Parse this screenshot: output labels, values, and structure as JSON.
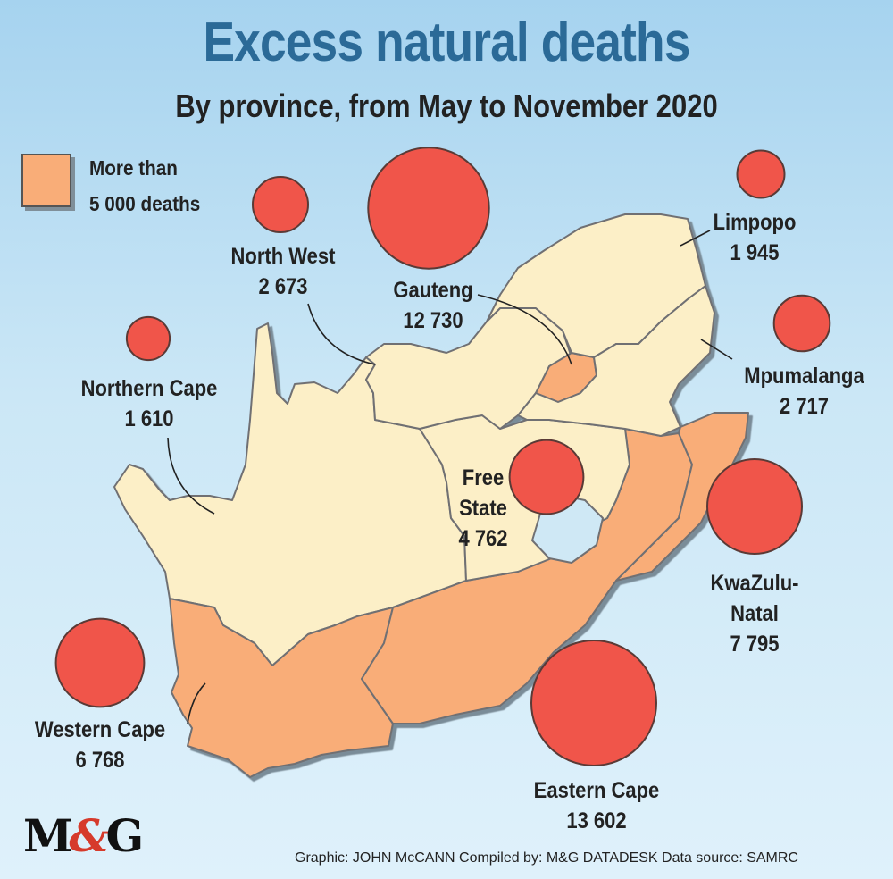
{
  "title": "Excess natural deaths",
  "subtitle": "By province, from May to November 2020",
  "legend": {
    "line1": "More than",
    "line2": "5 000 deaths",
    "swatch_color": "#f9ad78"
  },
  "colors": {
    "ocean": "#cbe7f6",
    "province_default": "#fcefc7",
    "province_highlight": "#f9ad78",
    "bubble": "#f0554a",
    "title": "#2b6a97"
  },
  "provinces": [
    {
      "name": "Gauteng",
      "value_label": "12 730",
      "value": 12730,
      "over_5000": true
    },
    {
      "name": "North West",
      "value_label": "2 673",
      "value": 2673,
      "over_5000": false
    },
    {
      "name": "Limpopo",
      "value_label": "1 945",
      "value": 1945,
      "over_5000": false
    },
    {
      "name": "Mpumalanga",
      "value_label": "2 717",
      "value": 2717,
      "over_5000": false
    },
    {
      "name": "Northern Cape",
      "value_label": "1 610",
      "value": 1610,
      "over_5000": false
    },
    {
      "name": "Free State",
      "value_label": "4 762",
      "value": 4762,
      "over_5000": false
    },
    {
      "name": "KwaZulu-Natal",
      "value_label": "7 795",
      "value": 7795,
      "over_5000": true
    },
    {
      "name": "Western Cape",
      "value_label": "6 768",
      "value": 6768,
      "over_5000": true
    },
    {
      "name": "Eastern Cape",
      "value_label": "13 602",
      "value": 13602,
      "over_5000": true
    }
  ],
  "labels": {
    "gauteng": {
      "name": "Gauteng",
      "value": "12 730"
    },
    "north_west": {
      "name": "North West",
      "value": "2 673"
    },
    "limpopo": {
      "name": "Limpopo",
      "value": "1 945"
    },
    "mpumalanga": {
      "name": "Mpumalanga",
      "value": "2 717"
    },
    "northern_cape": {
      "name": "Northern Cape",
      "value": "1 610"
    },
    "free_state": {
      "name1": "Free",
      "name2": "State",
      "value": "4 762"
    },
    "kwazulu_natal": {
      "name1": "KwaZulu-",
      "name2": "Natal",
      "value": "7 795"
    },
    "western_cape": {
      "name": "Western Cape",
      "value": "6 768"
    },
    "eastern_cape": {
      "name": "Eastern Cape",
      "value": "13 602"
    }
  },
  "credits": "Graphic: JOHN McCANN  Compiled by: M&G DATADESK  Data source: SAMRC",
  "logo": "M&G"
}
